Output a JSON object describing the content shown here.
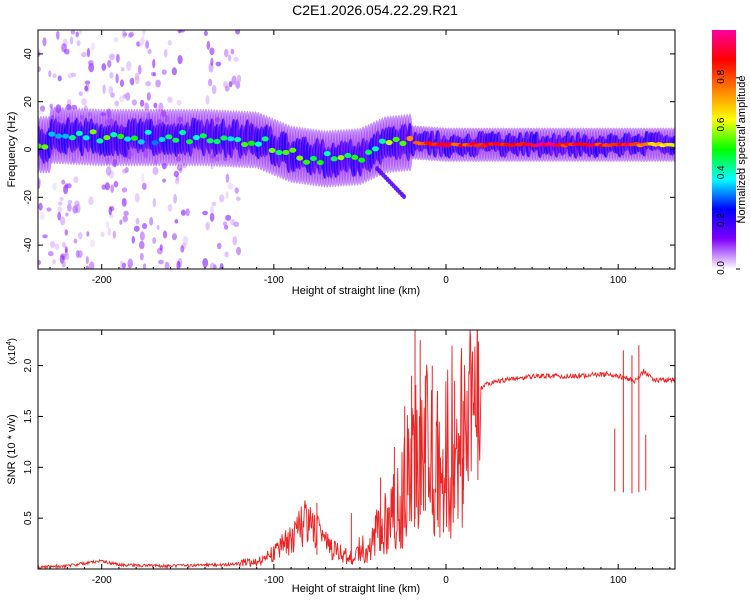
{
  "title": "C2E1.2026.054.22.29.R21",
  "chart_data": [
    {
      "type": "heatmap",
      "name": "spectrogram",
      "xlabel": "Height of straight line (km)",
      "ylabel": "Frequency (Hz)",
      "xlim": [
        -237,
        133
      ],
      "ylim": [
        -50,
        50
      ],
      "xticks": [
        -200,
        -100,
        0,
        100
      ],
      "yticks": [
        -40,
        -20,
        0,
        20,
        40
      ],
      "xtick_labels": [
        "-200",
        "-100",
        "0",
        "100"
      ],
      "ytick_labels": [
        "-40",
        "-20",
        "0",
        "20",
        "40"
      ],
      "colorbar": {
        "label": "Normalized spectral amplitude",
        "range": [
          0,
          1
        ],
        "ticks": [
          0.0,
          0.2,
          0.4,
          0.6,
          0.8
        ],
        "tick_labels": [
          "0.0",
          "0.2",
          "0.4",
          "0.6",
          "0.8"
        ],
        "colormap": [
          "#ffffff",
          "#8000ff",
          "#0000ff",
          "#00ffff",
          "#00ff00",
          "#ffff00",
          "#ff8000",
          "#ff0000",
          "#ff00a0"
        ]
      },
      "ridge": [
        {
          "x": -230,
          "y": 6,
          "amp": 0.35
        },
        {
          "x": -200,
          "y": 5,
          "amp": 0.5
        },
        {
          "x": -170,
          "y": 5,
          "amp": 0.4
        },
        {
          "x": -140,
          "y": 5,
          "amp": 0.45
        },
        {
          "x": -110,
          "y": 4,
          "amp": 0.45
        },
        {
          "x": -90,
          "y": -2,
          "amp": 0.5
        },
        {
          "x": -70,
          "y": -4,
          "amp": 0.5
        },
        {
          "x": -50,
          "y": -3,
          "amp": 0.45
        },
        {
          "x": -35,
          "y": 2,
          "amp": 0.5
        },
        {
          "x": -20,
          "y": 3,
          "amp": 0.7
        },
        {
          "x": 0,
          "y": 2,
          "amp": 0.85
        },
        {
          "x": 40,
          "y": 2,
          "amp": 0.9
        },
        {
          "x": 80,
          "y": 2,
          "amp": 0.9
        },
        {
          "x": 110,
          "y": 2,
          "amp": 0.85
        },
        {
          "x": 133,
          "y": 2,
          "amp": 0.6
        }
      ]
    },
    {
      "type": "line",
      "name": "snr",
      "xlabel": "Height of straight line (km)",
      "ylabel": "SNR (10 * v/v)",
      "scale_label": "(x10",
      "scale_exponent": "4",
      "xlim": [
        -237,
        133
      ],
      "ylim": [
        0,
        2.35
      ],
      "xticks": [
        -200,
        -100,
        0,
        100
      ],
      "yticks": [
        0.5,
        1.0,
        1.5,
        2.0
      ],
      "xtick_labels": [
        "-200",
        "-100",
        "0",
        "100"
      ],
      "ytick_labels": [
        "0.5",
        "1.0",
        "1.5",
        "2.0"
      ],
      "color": "#ee2222",
      "x": [
        -237,
        -220,
        -200,
        -190,
        -160,
        -130,
        -110,
        -100,
        -90,
        -82,
        -75,
        -65,
        -55,
        -45,
        -35,
        -28,
        -22,
        -16,
        -10,
        -5,
        0,
        8,
        15,
        25,
        40,
        60,
        80,
        95,
        100,
        110,
        115,
        120,
        133
      ],
      "y": [
        0.02,
        0.03,
        0.08,
        0.04,
        0.03,
        0.04,
        0.07,
        0.16,
        0.3,
        0.45,
        0.35,
        0.18,
        0.12,
        0.3,
        0.5,
        0.85,
        1.1,
        1.3,
        1.5,
        1.2,
        1.4,
        1.55,
        1.72,
        1.83,
        1.88,
        1.9,
        1.9,
        1.92,
        1.9,
        1.85,
        1.95,
        1.86,
        1.86
      ],
      "spike_x": [
        -75,
        -55,
        -38,
        -30,
        -24,
        -20,
        -18,
        -15,
        -12,
        -8,
        -5,
        5,
        10,
        98,
        103,
        108,
        112,
        116
      ],
      "spike_y": [
        0.65,
        0.55,
        0.9,
        1.2,
        1.6,
        1.9,
        2.35,
        2.25,
        1.9,
        2.0,
        1.75,
        1.85,
        1.65,
        1.38,
        2.15,
        2.1,
        2.2,
        1.32
      ]
    }
  ]
}
